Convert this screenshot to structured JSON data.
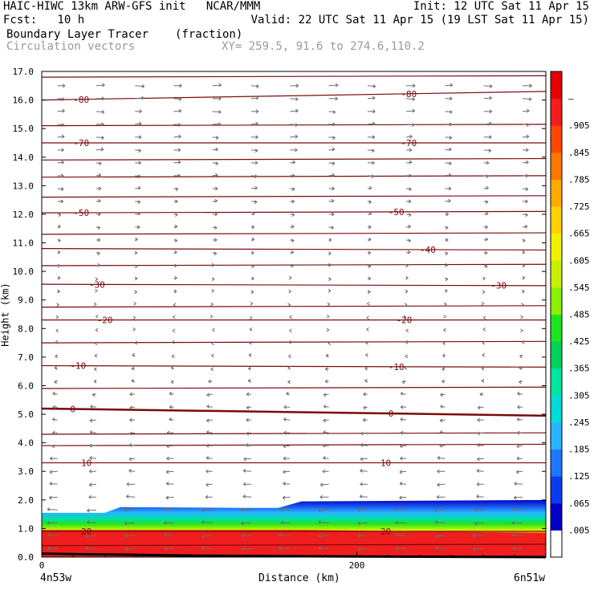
{
  "header": {
    "line1_left": "HAIC-HIWC 13km ARW-GFS init   NCAR/MMM",
    "line1_right": "Init: 12 UTC Sat 11 Apr 15",
    "line2_left": "Fcst:   10 h",
    "line2_right": "Valid: 22 UTC Sat 11 Apr 15 (19 LST Sat 11 Apr 15)",
    "field_name": "Boundary Layer Tracer",
    "field_unit": "(fraction)",
    "overlay_name": "Circulation vectors",
    "xy_text": "XY= 259.5, 91.6 to 274.6,110.2"
  },
  "chart_data": {
    "type": "heatmap",
    "xlabel": "Distance (km)",
    "ylabel": "Height (km)",
    "xlim": [
      0,
      320
    ],
    "ylim": [
      0.0,
      17.0
    ],
    "x_ticks": [
      0,
      200
    ],
    "y_ticks": [
      "0.0",
      "1.0",
      "2.0",
      "3.0",
      "4.0",
      "5.0",
      "6.0",
      "7.0",
      "8.0",
      "9.0",
      "10.0",
      "11.0",
      "12.0",
      "13.0",
      "14.0",
      "15.0",
      "16.0",
      "17.0"
    ],
    "left_endpoint_label": "4n53w",
    "right_endpoint_label": "6n51w",
    "colorbar": {
      "labels": [
        ".005",
        ".065",
        ".125",
        ".185",
        ".245",
        ".305",
        ".365",
        ".425",
        ".485",
        ".545",
        ".605",
        ".665",
        ".725",
        ".785",
        ".845",
        ".905",
        "—"
      ],
      "colors": [
        "#ffffff",
        "#0000c8",
        "#0a3cf0",
        "#1e78ff",
        "#28b4ff",
        "#00dcdc",
        "#00e6a0",
        "#00d25a",
        "#1ee61e",
        "#8cf000",
        "#c8f000",
        "#f0f000",
        "#ffd200",
        "#ffaa00",
        "#ff7800",
        "#ff4600",
        "#f01e1e",
        "#e60000"
      ]
    },
    "tracer_top_km": [
      {
        "x": 0,
        "h": 1.55
      },
      {
        "x": 40,
        "h": 1.55
      },
      {
        "x": 50,
        "h": 1.75
      },
      {
        "x": 130,
        "h": 1.72
      },
      {
        "x": 150,
        "h": 1.72
      },
      {
        "x": 165,
        "h": 1.95
      },
      {
        "x": 320,
        "h": 2.0
      }
    ],
    "isotherms": [
      {
        "value": 0,
        "y0": 5.2,
        "y1": 4.95,
        "labels": [
          {
            "text": "0",
            "x": 18
          },
          {
            "text": "0",
            "x": 220
          }
        ]
      },
      {
        "value": -10,
        "y0": 6.7,
        "y1": 6.65,
        "labels": [
          {
            "text": "-10",
            "x": 18
          },
          {
            "text": "-10",
            "x": 220
          }
        ]
      },
      {
        "value": -20,
        "y0": 8.3,
        "y1": 8.3,
        "labels": [
          {
            "text": "-20",
            "x": 35
          },
          {
            "text": "-20",
            "x": 225
          }
        ]
      },
      {
        "value": -30,
        "y0": 9.55,
        "y1": 9.5,
        "labels": [
          {
            "text": "-30",
            "x": 30
          },
          {
            "text": "-30",
            "x": 285
          }
        ]
      },
      {
        "value": -40,
        "y0": 10.8,
        "y1": 10.75,
        "labels": [
          {
            "text": "-40",
            "x": 240
          }
        ]
      },
      {
        "value": -50,
        "y0": 12.05,
        "y1": 12.1,
        "labels": [
          {
            "text": "-50",
            "x": 20
          },
          {
            "text": "-50",
            "x": 220
          }
        ]
      },
      {
        "value": -70,
        "y0": 14.5,
        "y1": 14.5,
        "labels": [
          {
            "text": "-70",
            "x": 20
          },
          {
            "text": "-70",
            "x": 228
          }
        ]
      },
      {
        "value": -80,
        "y0": 16.0,
        "y1": 16.3,
        "labels": [
          {
            "text": "-80",
            "x": 20
          },
          {
            "text": "-80",
            "x": 228
          }
        ]
      }
    ],
    "warm_isotherms": [
      {
        "label": "10",
        "y0": 3.3,
        "y1": 3.3,
        "labels": [
          {
            "text": "10",
            "x": 25
          },
          {
            "text": "10",
            "x": 215
          }
        ]
      },
      {
        "label": "20",
        "y0": 0.9,
        "y1": 0.9,
        "labels": [
          {
            "text": "20",
            "x": 25
          },
          {
            "text": "20",
            "x": 215
          }
        ]
      }
    ],
    "unlabeled_isotherm_heights_km": [
      0.4,
      3.9,
      4.3,
      5.9,
      7.5,
      8.75,
      10.2,
      11.3,
      12.6,
      13.3,
      13.9,
      15.1,
      16.8
    ],
    "vectors_note": "Circulation vectors: easterly (leftward) flow below ~6 km, westerly (rightward) flow above ~9 km"
  }
}
